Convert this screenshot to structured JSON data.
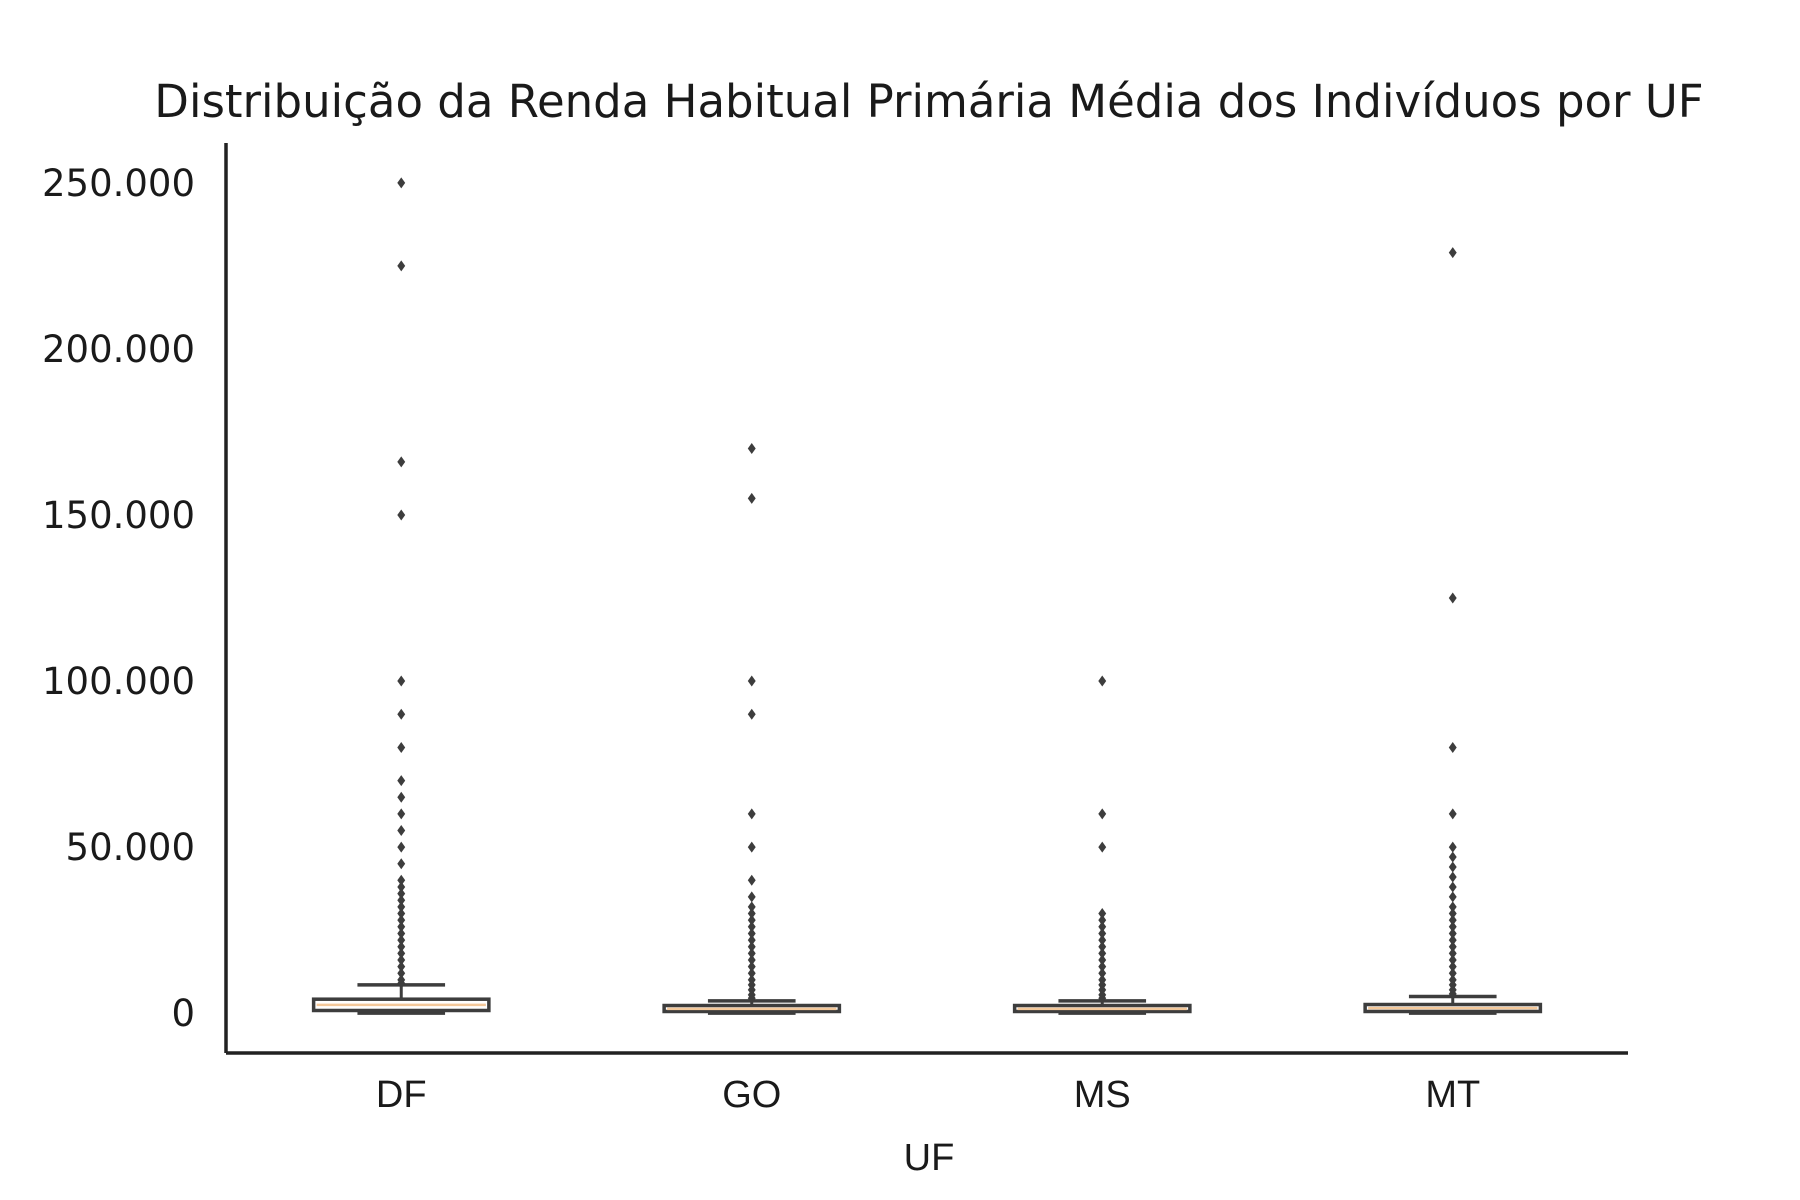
{
  "chart_data": {
    "type": "box",
    "title": "Distribuição da Renda Habitual Primária Média dos Indivíduos por UF",
    "xlabel": "UF",
    "ylabel": "",
    "ylim": [
      -12000,
      262000
    ],
    "yticks": [
      0,
      50000,
      100000,
      150000,
      200000,
      250000
    ],
    "ytick_labels": [
      "0",
      "50.000",
      "100.000",
      "150.000",
      "200.000",
      "250.000"
    ],
    "categories": [
      "DF",
      "GO",
      "MS",
      "MT"
    ],
    "grid": false,
    "legend": "none",
    "colors": {
      "box_fill": "#ffffff",
      "box_edge": "#3d3d3d",
      "median": "#f4c89a",
      "outlier": "#3d3d3d",
      "axis": "#222222",
      "text": "#1a1a1a"
    },
    "boxes": [
      {
        "category": "DF",
        "whisker_low": 0,
        "q1": 800,
        "median": 2500,
        "q3": 4200,
        "whisker_high": 8500,
        "outliers": [
          250000,
          225000,
          166000,
          150000,
          100000,
          90000,
          80000,
          70000,
          65000,
          60000,
          55000,
          50000,
          45000,
          40000,
          38000,
          36000,
          34000,
          32000,
          30000,
          28000,
          26000,
          24000,
          22000,
          20000,
          18000,
          16000,
          14000,
          12000,
          10000,
          9000
        ]
      },
      {
        "category": "GO",
        "whisker_low": 0,
        "q1": 500,
        "median": 1300,
        "q3": 2300,
        "whisker_high": 3700,
        "outliers": [
          170000,
          155000,
          100000,
          90000,
          60000,
          50000,
          40000,
          35000,
          32000,
          30000,
          28000,
          26000,
          24000,
          22000,
          20000,
          18000,
          16000,
          14000,
          12000,
          10000,
          8500,
          7000,
          5500,
          4500
        ]
      },
      {
        "category": "MS",
        "whisker_low": 0,
        "q1": 500,
        "median": 1300,
        "q3": 2300,
        "whisker_high": 3700,
        "outliers": [
          100000,
          60000,
          50000,
          30000,
          28000,
          26000,
          24000,
          22000,
          20000,
          18000,
          16000,
          14000,
          12000,
          10000,
          8500,
          7000,
          5500,
          4500
        ]
      },
      {
        "category": "MT",
        "whisker_low": 0,
        "q1": 500,
        "median": 1500,
        "q3": 2600,
        "whisker_high": 5000,
        "outliers": [
          229000,
          125000,
          80000,
          60000,
          50000,
          47000,
          44000,
          41000,
          38000,
          35000,
          32000,
          30000,
          28000,
          26000,
          24000,
          22000,
          20000,
          18000,
          16000,
          14000,
          12000,
          10000,
          8500,
          7000,
          5800
        ]
      }
    ]
  }
}
